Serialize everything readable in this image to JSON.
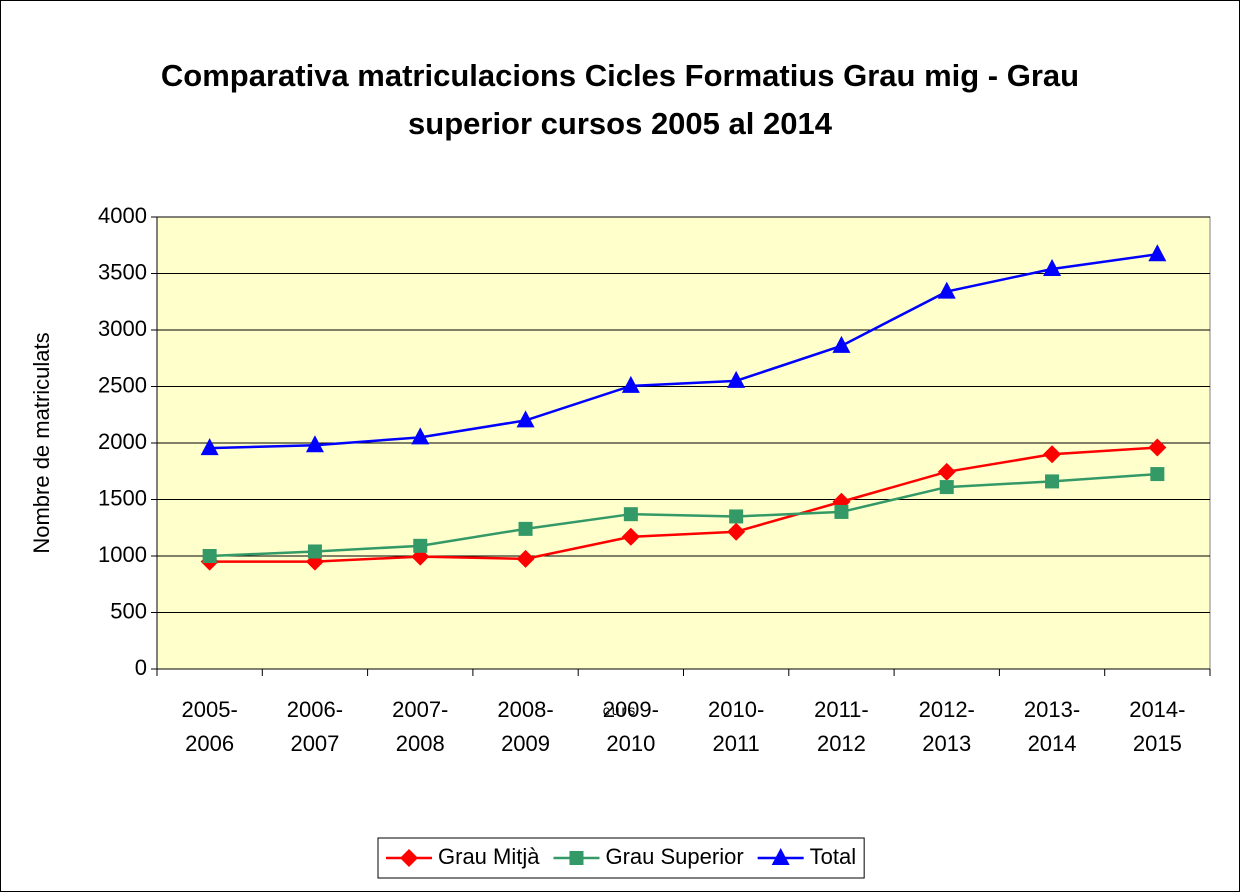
{
  "chart_data": {
    "type": "line",
    "title": "Comparativa matriculacions Cicles Formatius Grau mig - Grau superior cursos 2005 al 2014",
    "xlabel": "curs",
    "ylabel": "Nombre de matriculats",
    "categories": [
      "2005-2006",
      "2006-2007",
      "2007-2008",
      "2008-2009",
      "2009-2010",
      "2010-2011",
      "2011-2012",
      "2012-2013",
      "2013-2014",
      "2014-2015"
    ],
    "series": [
      {
        "name": "Grau Mitjà",
        "color": "#ff0000",
        "marker": "diamond",
        "values": [
          950,
          950,
          995,
          975,
          1170,
          1215,
          1480,
          1745,
          1900,
          1960
        ]
      },
      {
        "name": "Grau Superior",
        "color": "#339966",
        "marker": "square",
        "values": [
          1000,
          1040,
          1090,
          1240,
          1370,
          1350,
          1390,
          1610,
          1660,
          1725
        ]
      },
      {
        "name": "Total",
        "color": "#0000ff",
        "marker": "triangle",
        "values": [
          1955,
          1980,
          2050,
          2200,
          2505,
          2550,
          2860,
          3340,
          3540,
          3670
        ]
      }
    ],
    "ylim": [
      0,
      4000
    ],
    "yticks": [
      0,
      500,
      1000,
      1500,
      2000,
      2500,
      3000,
      3500,
      4000
    ],
    "grid": true,
    "plot_background": "#ffffcc",
    "legend": "bottom"
  }
}
